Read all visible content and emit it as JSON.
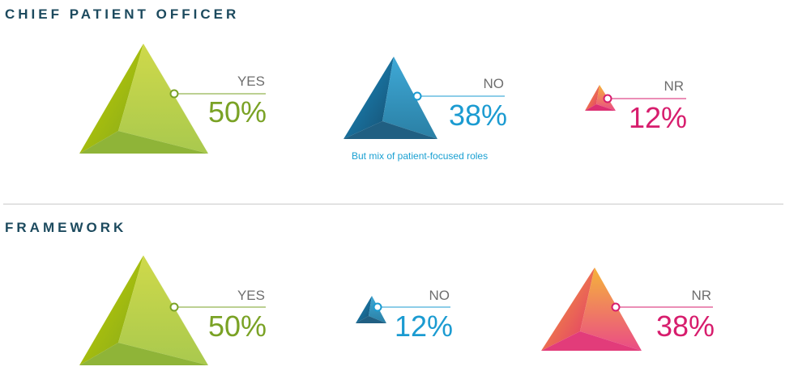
{
  "colors": {
    "yes": "#7aa225",
    "no": "#1b9bd1",
    "nr": "#d71d6d",
    "title": "#1c4a5e"
  },
  "sections": [
    {
      "title": "CHIEF PATIENT OFFICER",
      "items": [
        {
          "label": "YES",
          "value": "50%"
        },
        {
          "label": "NO",
          "value": "38%"
        },
        {
          "label": "NR",
          "value": "12%"
        }
      ],
      "note": "But mix of patient-focused roles"
    },
    {
      "title": "FRAMEWORK",
      "items": [
        {
          "label": "YES",
          "value": "50%"
        },
        {
          "label": "NO",
          "value": "12%"
        },
        {
          "label": "NR",
          "value": "38%"
        }
      ]
    }
  ],
  "chart_data": [
    {
      "type": "pyramid",
      "title": "CHIEF PATIENT OFFICER",
      "categories": [
        "YES",
        "NO",
        "NR"
      ],
      "values": [
        50,
        38,
        12
      ],
      "annotation": "But mix of patient-focused roles"
    },
    {
      "type": "pyramid",
      "title": "FRAMEWORK",
      "categories": [
        "YES",
        "NO",
        "NR"
      ],
      "values": [
        50,
        12,
        38
      ]
    }
  ]
}
